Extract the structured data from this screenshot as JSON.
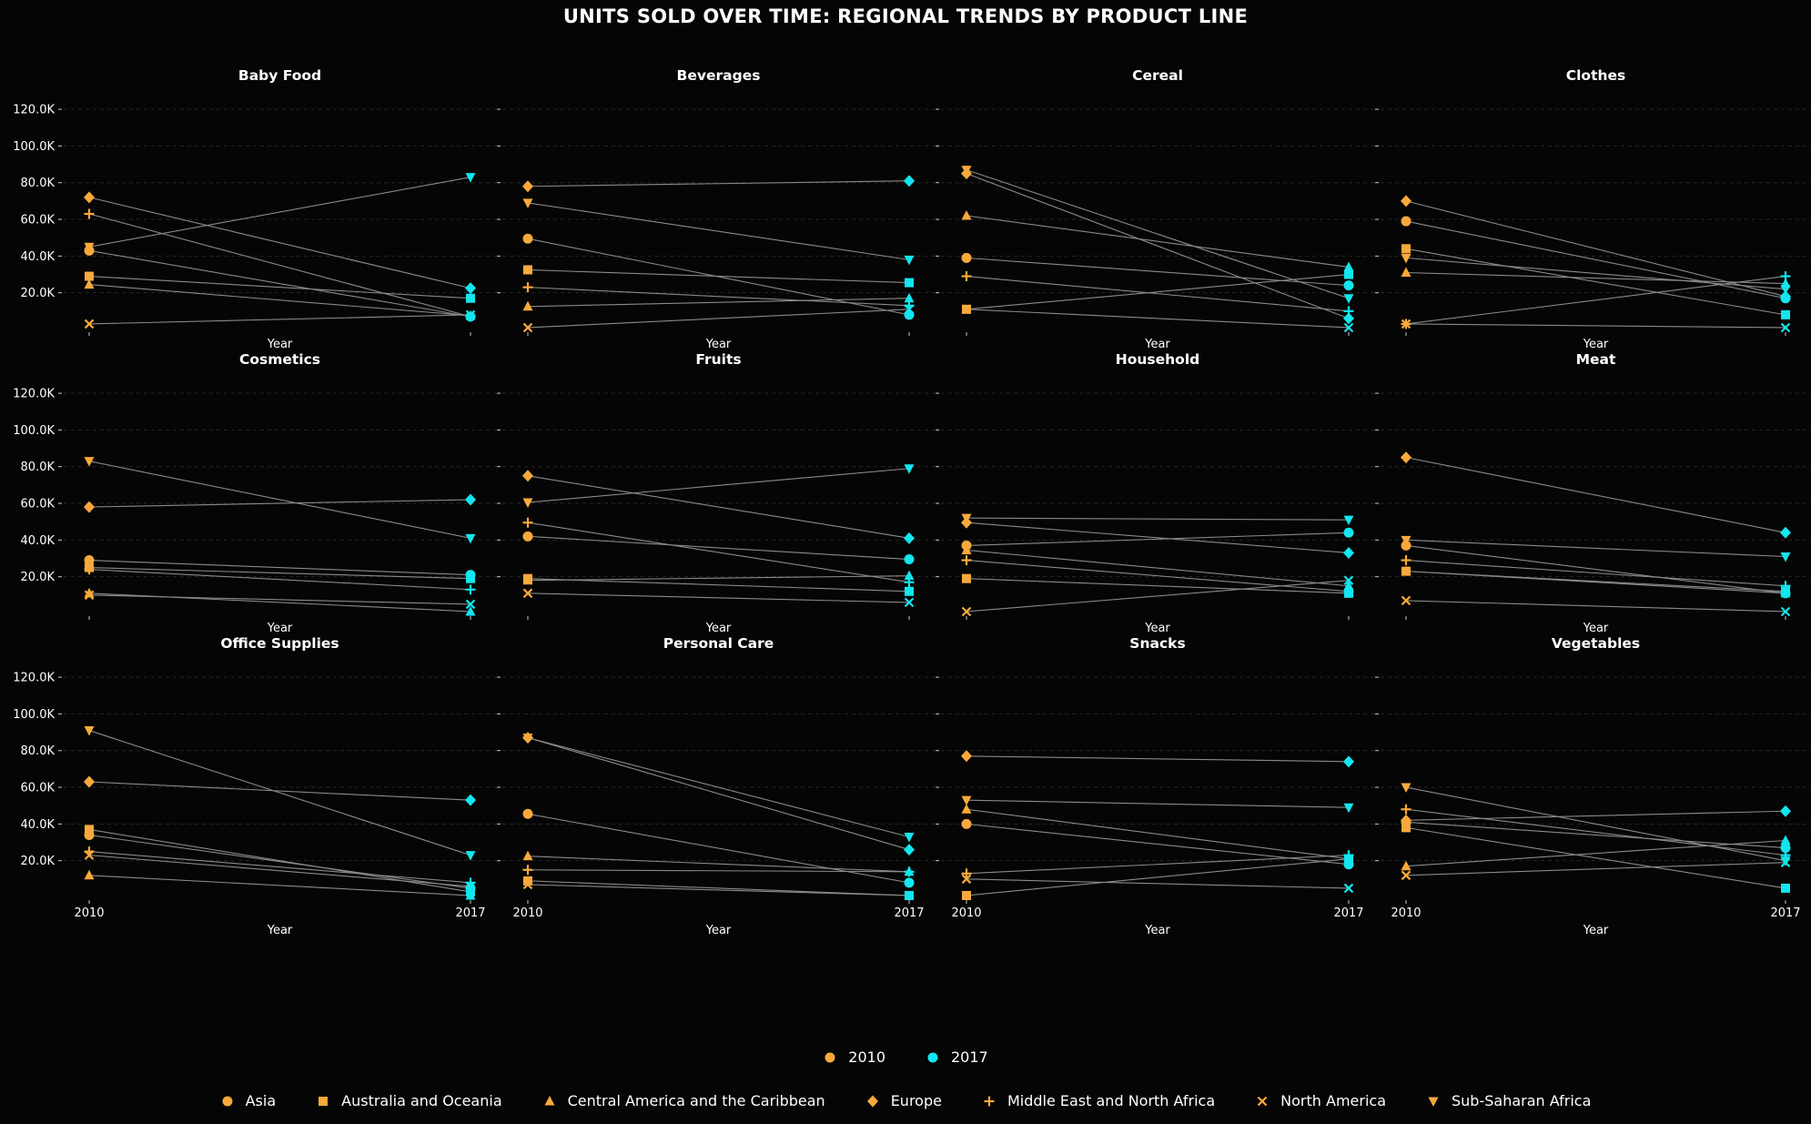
{
  "title": "UNITS SOLD OVER TIME: REGIONAL TRENDS BY PRODUCT LINE",
  "colors": {
    "background": "#050505",
    "year_2010": "#f9a93c",
    "year_2017": "#12e6ee",
    "line": "#8a8a8a",
    "grid": "#262626"
  },
  "year_legend": [
    {
      "label": "2010",
      "marker": "circle",
      "color": "#f9a93c"
    },
    {
      "label": "2017",
      "marker": "circle",
      "color": "#12e6ee"
    }
  ],
  "region_legend": [
    {
      "label": "Asia",
      "marker": "circle"
    },
    {
      "label": "Australia and Oceania",
      "marker": "square"
    },
    {
      "label": "Central America and the Caribbean",
      "marker": "triangle-up"
    },
    {
      "label": "Europe",
      "marker": "diamond"
    },
    {
      "label": "Middle East and North Africa",
      "marker": "plus"
    },
    {
      "label": "North America",
      "marker": "x"
    },
    {
      "label": "Sub-Saharan Africa",
      "marker": "triangle-down"
    }
  ],
  "chart_data": {
    "type": "line",
    "x_categories": [
      "2010",
      "2017"
    ],
    "xlabel": "Year",
    "ylim": [
      0,
      125000
    ],
    "y_ticks": [
      20000,
      40000,
      60000,
      80000,
      100000,
      120000
    ],
    "y_tick_labels": [
      "20.0K",
      "40.0K",
      "60.0K",
      "80.0K",
      "100.0K",
      "120.0K"
    ],
    "grid": "horizontal dashed",
    "series_order": [
      "Asia",
      "Australia and Oceania",
      "Central America and the Caribbean",
      "Europe",
      "Middle East and North Africa",
      "North America",
      "Sub-Saharan Africa"
    ],
    "panels": [
      {
        "title": "Baby Food",
        "v2010": [
          43000,
          29000,
          24500,
          72000,
          63000,
          3000,
          45000
        ],
        "v2017": [
          7000,
          17000,
          7500,
          22500,
          7000,
          8000,
          83000
        ]
      },
      {
        "title": "Beverages",
        "v2010": [
          49500,
          32500,
          12500,
          78000,
          23000,
          1000,
          69000
        ],
        "v2017": [
          8000,
          25500,
          17000,
          81000,
          13000,
          11000,
          38000
        ]
      },
      {
        "title": "Cereal",
        "v2010": [
          39000,
          11000,
          62000,
          85000,
          29000,
          11000,
          87000
        ],
        "v2017": [
          24000,
          30000,
          34000,
          6000,
          10000,
          1000,
          17000
        ]
      },
      {
        "title": "Clothes",
        "v2010": [
          59000,
          44000,
          31000,
          70000,
          3000,
          3000,
          39000
        ],
        "v2017": [
          17000,
          8000,
          25000,
          18000,
          29000,
          1000,
          22000
        ]
      },
      {
        "title": "Cosmetics",
        "v2010": [
          29000,
          25000,
          11000,
          58000,
          24000,
          10000,
          83000
        ],
        "v2017": [
          21000,
          19000,
          1000,
          62000,
          13000,
          5000,
          41000
        ]
      },
      {
        "title": "Fruits",
        "v2010": [
          42000,
          19000,
          18000,
          75000,
          49500,
          11000,
          60500
        ],
        "v2017": [
          29500,
          12000,
          20500,
          41000,
          17000,
          6000,
          79000
        ]
      },
      {
        "title": "Household",
        "v2010": [
          37000,
          19000,
          34500,
          49500,
          29000,
          1000,
          52000
        ],
        "v2017": [
          44000,
          11000,
          15000,
          33000,
          12000,
          18000,
          51000
        ]
      },
      {
        "title": "Meat",
        "v2010": [
          37000,
          23000,
          23000,
          85000,
          29000,
          7000,
          40000
        ],
        "v2017": [
          11000,
          12000,
          11000,
          44000,
          15000,
          1000,
          31000
        ]
      },
      {
        "title": "Office Supplies",
        "v2010": [
          34000,
          37000,
          12000,
          63000,
          25000,
          23000,
          91000
        ],
        "v2017": [
          5000,
          3000,
          1000,
          53000,
          8000,
          6000,
          23000
        ]
      },
      {
        "title": "Personal Care",
        "v2010": [
          45500,
          9000,
          22500,
          87000,
          15000,
          7000,
          87000
        ],
        "v2017": [
          8000,
          1000,
          14000,
          26000,
          14000,
          1000,
          33000
        ]
      },
      {
        "title": "Snacks",
        "v2010": [
          40000,
          1000,
          48000,
          77000,
          13000,
          10000,
          53000
        ],
        "v2017": [
          18000,
          21000,
          21000,
          74000,
          23000,
          5000,
          49000
        ]
      },
      {
        "title": "Vegetables",
        "v2010": [
          41000,
          38000,
          17000,
          42000,
          48000,
          12000,
          60000
        ],
        "v2017": [
          27000,
          5000,
          31000,
          47000,
          23000,
          19000,
          20000
        ]
      }
    ]
  }
}
